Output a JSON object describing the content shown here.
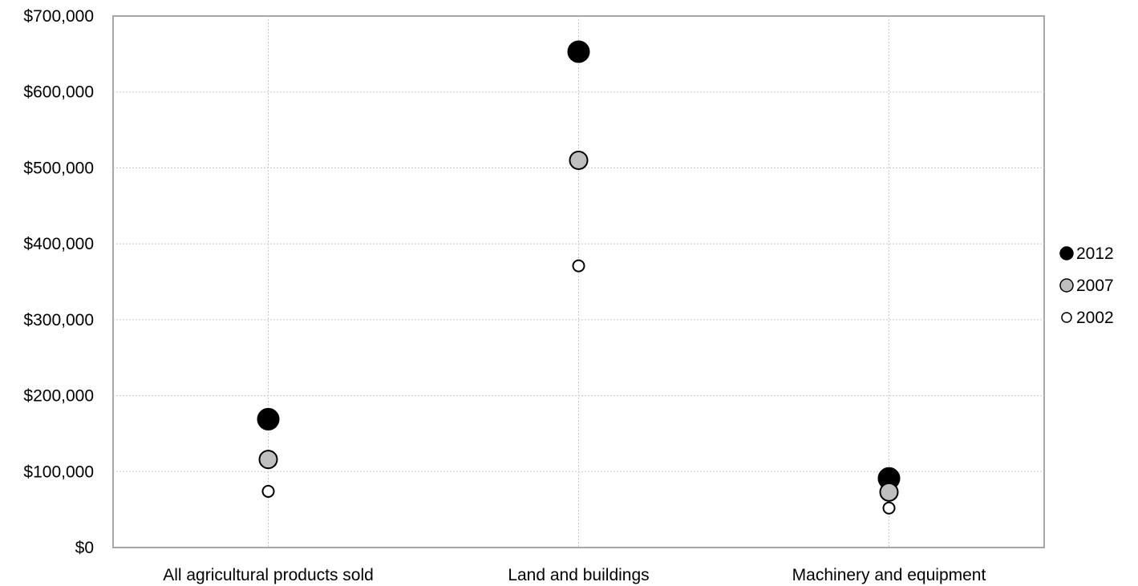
{
  "chart_data": {
    "type": "scatter",
    "title": "",
    "xlabel": "",
    "ylabel": "",
    "categories": [
      "All agricultural products sold",
      "Land and buildings",
      "Machinery and equipment"
    ],
    "ylim": [
      0,
      700000
    ],
    "yticks": [
      0,
      100000,
      200000,
      300000,
      400000,
      500000,
      600000,
      700000
    ],
    "ytick_labels": [
      "$0",
      "$100,000",
      "$200,000",
      "$300,000",
      "$400,000",
      "$500,000",
      "$600,000",
      "$700,000"
    ],
    "grid": true,
    "legend_position": "right",
    "series": [
      {
        "name": "2012",
        "values": [
          169000,
          653000,
          91000
        ],
        "color": "#000000",
        "marker": "large-circle"
      },
      {
        "name": "2007",
        "values": [
          116000,
          510000,
          73000
        ],
        "color": "#bfbfbf",
        "marker": "medium-circle"
      },
      {
        "name": "2002",
        "values": [
          74000,
          371000,
          52000
        ],
        "color": "#ffffff",
        "marker": "small-circle"
      }
    ]
  }
}
